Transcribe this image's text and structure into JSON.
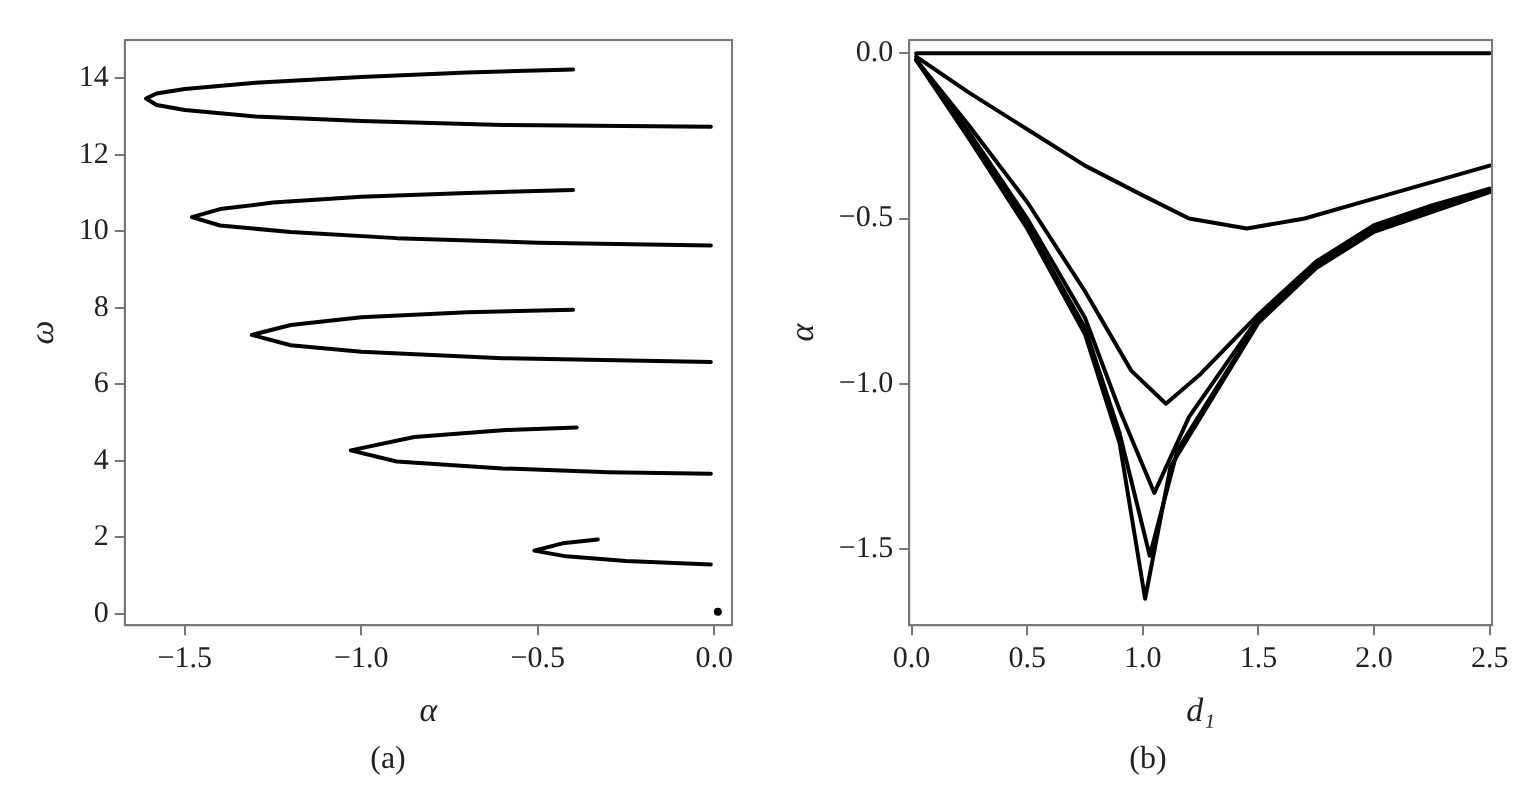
{
  "chart_data": [
    {
      "type": "line",
      "xlabel": "α",
      "ylabel": "ω",
      "annotations": [
        "(a)"
      ],
      "xlim": [
        -1.67,
        0.05
      ],
      "ylim": [
        -0.3,
        15
      ],
      "xticks": [
        {
          "value": -1.5,
          "label": "−1.5"
        },
        {
          "value": -1.0,
          "label": "−1.0"
        },
        {
          "value": -0.5,
          "label": "−0.5"
        },
        {
          "value": 0,
          "label": "0.0"
        }
      ],
      "yticks": [
        0,
        2,
        4,
        6,
        8,
        10,
        12,
        14
      ],
      "grid": false,
      "legend": false,
      "marker": "none",
      "line_style": "solid",
      "series": [
        {
          "color": "#000000",
          "x": [
            -0.4,
            -0.7,
            -1.0,
            -1.3,
            -1.5,
            -1.58,
            -1.61,
            -1.58,
            -1.5,
            -1.3,
            -1.0,
            -0.6,
            -0.01
          ],
          "values": [
            14.23,
            14.15,
            14.03,
            13.88,
            13.72,
            13.6,
            13.47,
            13.3,
            13.17,
            13.0,
            12.88,
            12.78,
            12.73
          ]
        },
        {
          "color": "#000000",
          "x": [
            -0.4,
            -0.7,
            -1.0,
            -1.25,
            -1.4,
            -1.48,
            -1.4,
            -1.2,
            -0.9,
            -0.5,
            -0.01
          ],
          "values": [
            11.08,
            11.0,
            10.9,
            10.75,
            10.58,
            10.37,
            10.15,
            9.98,
            9.82,
            9.7,
            9.63
          ]
        },
        {
          "color": "#000000",
          "x": [
            -0.4,
            -0.7,
            -1.0,
            -1.2,
            -1.31,
            -1.2,
            -1.0,
            -0.6,
            -0.01
          ],
          "values": [
            7.95,
            7.88,
            7.75,
            7.55,
            7.29,
            7.02,
            6.85,
            6.68,
            6.58
          ]
        },
        {
          "color": "#000000",
          "x": [
            -0.39,
            -0.6,
            -0.85,
            -1.03,
            -0.9,
            -0.6,
            -0.3,
            -0.01
          ],
          "values": [
            4.87,
            4.8,
            4.62,
            4.27,
            3.98,
            3.8,
            3.7,
            3.66
          ]
        },
        {
          "color": "#000000",
          "x": [
            -0.33,
            -0.43,
            -0.51,
            -0.42,
            -0.25,
            -0.01
          ],
          "values": [
            1.94,
            1.84,
            1.65,
            1.5,
            1.38,
            1.29
          ]
        },
        {
          "type": "scatter",
          "marker": "circle",
          "color": "#000000",
          "x": [
            0.01
          ],
          "values": [
            0.05
          ]
        }
      ]
    },
    {
      "type": "line",
      "xlabel": "d₁",
      "ylabel": "α",
      "annotations": [
        "(b)"
      ],
      "xlim": [
        -0.01,
        2.51
      ],
      "ylim": [
        -1.73,
        0.04
      ],
      "xticks": [
        {
          "value": 0,
          "label": "0.0"
        },
        {
          "value": 0.5,
          "label": "0.5"
        },
        {
          "value": 1.0,
          "label": "1.0"
        },
        {
          "value": 1.5,
          "label": "1.5"
        },
        {
          "value": 2.0,
          "label": "2.0"
        },
        {
          "value": 2.5,
          "label": "2.5"
        }
      ],
      "yticks": [
        {
          "value": 0,
          "label": "0.0"
        },
        {
          "value": -0.5,
          "label": "−0.5"
        },
        {
          "value": -1.0,
          "label": "−1.0"
        },
        {
          "value": -1.5,
          "label": "−1.5"
        }
      ],
      "grid": false,
      "legend": false,
      "marker": "none",
      "line_style": "solid",
      "series": [
        {
          "color": "#000000",
          "x": [
            0.02,
            2.5
          ],
          "values": [
            0,
            0
          ]
        },
        {
          "color": "#000000",
          "x": [
            0.02,
            0.25,
            0.5,
            0.75,
            1.0,
            1.2,
            1.45,
            1.7,
            2.0,
            2.25,
            2.5
          ],
          "values": [
            -0.01,
            -0.12,
            -0.23,
            -0.34,
            -0.43,
            -0.5,
            -0.53,
            -0.5,
            -0.44,
            -0.39,
            -0.34
          ]
        },
        {
          "color": "#000000",
          "x": [
            0.02,
            0.25,
            0.5,
            0.75,
            0.95,
            1.1,
            1.25,
            1.5,
            1.75,
            2.0,
            2.25,
            2.5
          ],
          "values": [
            -0.02,
            -0.22,
            -0.45,
            -0.72,
            -0.96,
            -1.06,
            -0.97,
            -0.79,
            -0.63,
            -0.52,
            -0.46,
            -0.41
          ]
        },
        {
          "color": "#000000",
          "x": [
            0.02,
            0.25,
            0.5,
            0.75,
            0.9,
            1.05,
            1.2,
            1.5,
            1.75,
            2.0,
            2.5
          ],
          "values": [
            -0.02,
            -0.24,
            -0.5,
            -0.8,
            -1.08,
            -1.33,
            -1.1,
            -0.8,
            -0.64,
            -0.53,
            -0.41
          ]
        },
        {
          "color": "#000000",
          "x": [
            0.02,
            0.25,
            0.5,
            0.75,
            0.9,
            1.03,
            1.15,
            1.5,
            1.75,
            2.0,
            2.5
          ],
          "values": [
            -0.02,
            -0.25,
            -0.52,
            -0.83,
            -1.15,
            -1.52,
            -1.2,
            -0.81,
            -0.645,
            -0.535,
            -0.415
          ]
        },
        {
          "color": "#000000",
          "x": [
            0.02,
            0.25,
            0.5,
            0.75,
            0.9,
            1.01,
            1.12,
            1.5,
            1.75,
            2.0,
            2.5
          ],
          "values": [
            -0.02,
            -0.26,
            -0.53,
            -0.85,
            -1.18,
            -1.65,
            -1.25,
            -0.815,
            -0.65,
            -0.54,
            -0.42
          ]
        }
      ]
    }
  ]
}
